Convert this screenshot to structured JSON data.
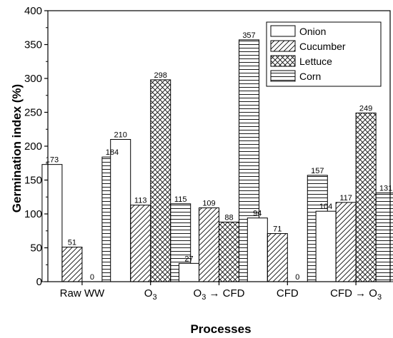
{
  "chart_data": {
    "type": "bar",
    "xlabel": "Processes",
    "ylabel": "Germination index (%)",
    "ylim": [
      0,
      400
    ],
    "yticks": [
      0,
      50,
      100,
      150,
      200,
      250,
      300,
      350,
      400
    ],
    "categories": [
      "Raw WW",
      "O3",
      "O3 → CFD",
      "CFD",
      "CFD → O3"
    ],
    "legend_position": "top-right",
    "series": [
      {
        "name": "Onion",
        "pattern": "none",
        "values": [
          173,
          210,
          27,
          94,
          104
        ]
      },
      {
        "name": "Cucumber",
        "pattern": "diagonal",
        "values": [
          51,
          113,
          109,
          71,
          117
        ]
      },
      {
        "name": "Lettuce",
        "pattern": "crosshatch",
        "values": [
          0,
          298,
          88,
          0,
          249
        ]
      },
      {
        "name": "Corn",
        "pattern": "horizontal",
        "values": [
          184,
          115,
          357,
          157,
          131
        ]
      }
    ]
  }
}
